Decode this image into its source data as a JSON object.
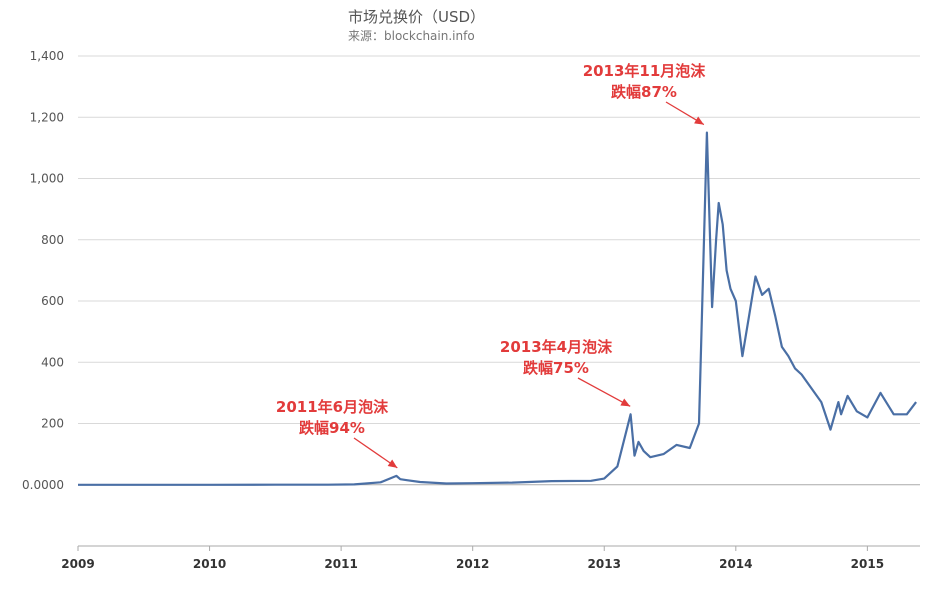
{
  "colors": {
    "line": "#4a6fa5",
    "grid": "#d9d9d9",
    "axis": "#aaaaaa",
    "annotation": "#e23b3b",
    "background": "#ffffff"
  },
  "chart_data": {
    "type": "line",
    "title": "市场兑换价（USD）",
    "subtitle": "来源：blockchain.info",
    "xlabel": "",
    "ylabel": "",
    "xlim": [
      2009.0,
      2015.4
    ],
    "ylim": [
      -200,
      1400
    ],
    "grid": true,
    "y_ticks": [
      {
        "value": 0,
        "label": "0.0000"
      },
      {
        "value": 200,
        "label": "200"
      },
      {
        "value": 400,
        "label": "400"
      },
      {
        "value": 600,
        "label": "600"
      },
      {
        "value": 800,
        "label": "800"
      },
      {
        "value": 1000,
        "label": "1,000"
      },
      {
        "value": 1200,
        "label": "1,200"
      },
      {
        "value": 1400,
        "label": "1,400"
      }
    ],
    "x_ticks": [
      {
        "value": 2009,
        "label": "2009"
      },
      {
        "value": 2010,
        "label": "2010"
      },
      {
        "value": 2011,
        "label": "2011"
      },
      {
        "value": 2012,
        "label": "2012"
      },
      {
        "value": 2013,
        "label": "2013"
      },
      {
        "value": 2014,
        "label": "2014"
      },
      {
        "value": 2015,
        "label": "2015"
      }
    ],
    "series": [
      {
        "x": [
          2009.0,
          2010.0,
          2010.5,
          2010.9,
          2011.1,
          2011.3,
          2011.42,
          2011.45,
          2011.5,
          2011.6,
          2011.8,
          2012.0,
          2012.3,
          2012.6,
          2012.9,
          2013.0,
          2013.1,
          2013.2,
          2013.23,
          2013.26,
          2013.3,
          2013.35,
          2013.45,
          2013.55,
          2013.65,
          2013.72,
          2013.78,
          2013.82,
          2013.85,
          2013.87,
          2013.9,
          2013.93,
          2013.96,
          2014.0,
          2014.05,
          2014.1,
          2014.15,
          2014.2,
          2014.25,
          2014.3,
          2014.35,
          2014.4,
          2014.45,
          2014.5,
          2014.6,
          2014.65,
          2014.72,
          2014.78,
          2014.8,
          2014.85,
          2014.92,
          2015.0,
          2015.1,
          2015.2,
          2015.3,
          2015.37
        ],
        "y": [
          0,
          0,
          0.1,
          0.3,
          1,
          8,
          29,
          18,
          15,
          9,
          4,
          5,
          7,
          12,
          13,
          20,
          60,
          230,
          95,
          140,
          110,
          90,
          100,
          130,
          120,
          200,
          1150,
          580,
          800,
          920,
          850,
          700,
          640,
          600,
          420,
          550,
          680,
          620,
          640,
          550,
          450,
          420,
          380,
          360,
          300,
          270,
          180,
          270,
          230,
          290,
          240,
          220,
          300,
          230,
          230,
          270
        ]
      }
    ],
    "annotations": [
      {
        "line1": "2011年6月泡沫",
        "line2": "跌幅94%",
        "point_x": 2011.45,
        "point_y": 29
      },
      {
        "line1": "2013年4月泡沫",
        "line2": "跌幅75%",
        "point_x": 2013.22,
        "point_y": 230
      },
      {
        "line1": "2013年11月泡沫",
        "line2": "跌幅87%",
        "point_x": 2013.78,
        "point_y": 1150
      }
    ]
  }
}
